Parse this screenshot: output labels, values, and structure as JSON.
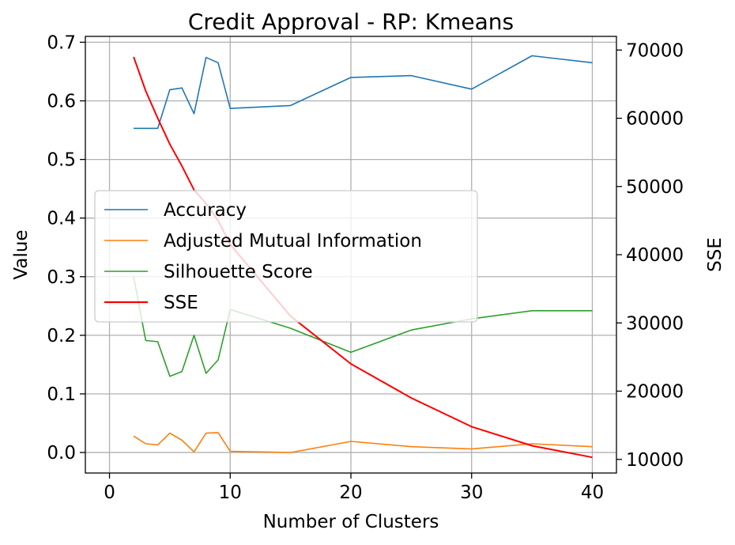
{
  "chart_data": {
    "type": "line",
    "title": "Credit Approval - RP: Kmeans",
    "xlabel": "Number of Clusters",
    "ylabel": "Value",
    "y2label": "SSE",
    "xlim": [
      -2,
      42
    ],
    "ylim": [
      -0.035,
      0.71
    ],
    "y2lim": [
      8000,
      72000
    ],
    "xticks": [
      0,
      10,
      20,
      30,
      40
    ],
    "yticks": [
      0.0,
      0.1,
      0.2,
      0.3,
      0.4,
      0.5,
      0.6,
      0.7
    ],
    "y2ticks": [
      10000,
      20000,
      30000,
      40000,
      50000,
      60000,
      70000
    ],
    "grid": true,
    "legend_position": "center-left",
    "x": [
      2,
      3,
      4,
      5,
      6,
      7,
      8,
      9,
      10,
      15,
      20,
      25,
      30,
      35,
      40
    ],
    "series": [
      {
        "name": "Accuracy",
        "axis": "left",
        "color": "#1f77b4",
        "values": [
          0.553,
          0.553,
          0.553,
          0.619,
          0.622,
          0.578,
          0.674,
          0.665,
          0.587,
          0.592,
          0.64,
          0.643,
          0.62,
          0.677,
          0.665
        ]
      },
      {
        "name": "Adjusted Mutual Information",
        "axis": "left",
        "color": "#ff7f0e",
        "values": [
          0.028,
          0.015,
          0.013,
          0.033,
          0.021,
          0.001,
          0.033,
          0.034,
          0.002,
          0.0,
          0.019,
          0.01,
          0.006,
          0.015,
          0.01
        ]
      },
      {
        "name": "Silhouette Score",
        "axis": "left",
        "color": "#2ca02c",
        "values": [
          0.3,
          0.191,
          0.189,
          0.13,
          0.138,
          0.2,
          0.135,
          0.158,
          0.244,
          0.212,
          0.171,
          0.209,
          0.228,
          0.242,
          0.242
        ]
      },
      {
        "name": "SSE",
        "axis": "right",
        "color": "#ff0000",
        "values": [
          69000,
          64000,
          60000,
          56200,
          53000,
          49500,
          47500,
          45000,
          41500,
          31000,
          24000,
          19000,
          14800,
          12000,
          10300
        ]
      }
    ]
  }
}
